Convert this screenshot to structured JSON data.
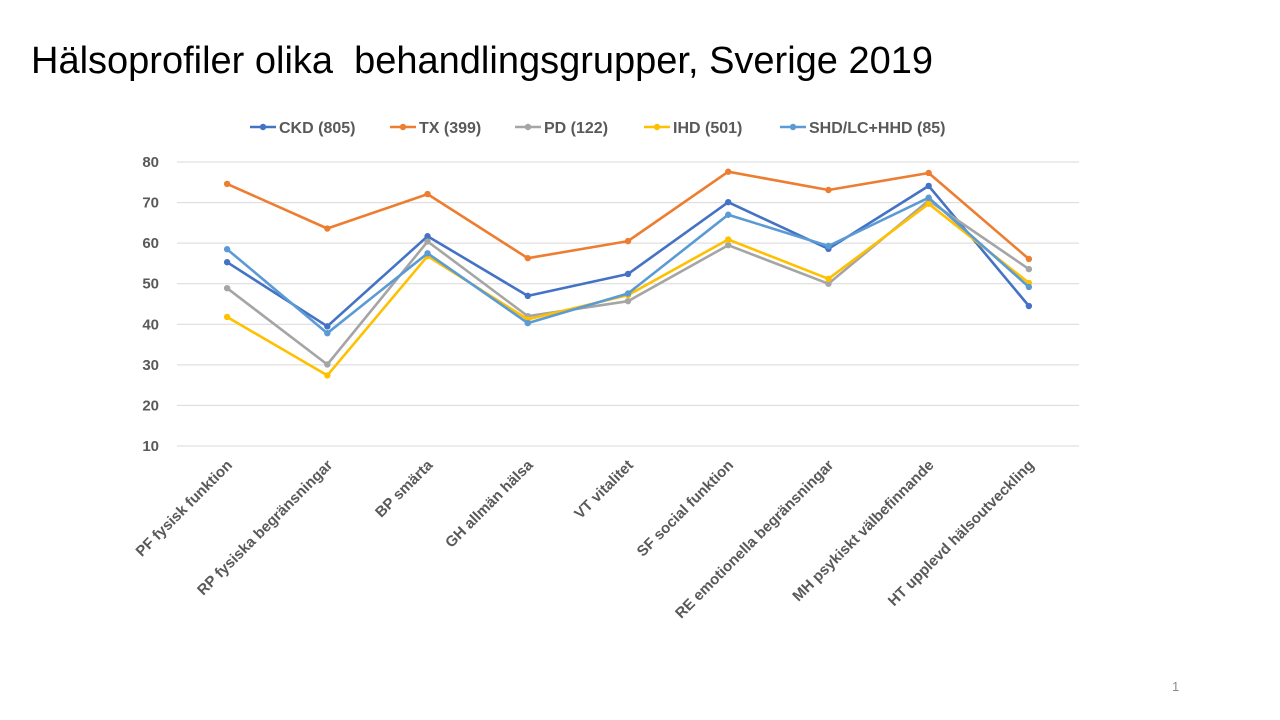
{
  "slide": {
    "title": "Hälsoprofiler olika  behandlingsgrupper, Sverige 2019",
    "page_number": "1"
  },
  "chart_data": {
    "type": "line",
    "title": "Hälsoprofiler olika  behandlingsgrupper, Sverige 2019",
    "xlabel": "",
    "ylabel": "",
    "categories": [
      "PF fysisk funktion",
      "RP fysiska begränsningar",
      "BP smärta",
      "GH allmän hälsa",
      "VT vitalitet",
      "SF social funktion",
      "RE emotionella begränsningar",
      "MH psykiskt välbefinnande",
      "HT upplevd hälsoutveckling"
    ],
    "ylim": [
      10,
      80
    ],
    "yticks": [
      "10",
      "20",
      "30",
      "40",
      "50",
      "60",
      "70",
      "80"
    ],
    "grid": true,
    "legend_position": "top",
    "series": [
      {
        "name": "CKD (805)",
        "color": "#4472C4",
        "values": [
          55.3,
          39.5,
          61.7,
          47.0,
          52.4,
          70.1,
          58.6,
          74.1,
          44.5
        ]
      },
      {
        "name": "TX (399)",
        "color": "#ED7D31",
        "values": [
          74.6,
          63.6,
          72.1,
          56.3,
          60.5,
          77.6,
          73.1,
          77.3,
          56.1
        ]
      },
      {
        "name": "PD (122)",
        "color": "#A5A5A5",
        "values": [
          48.9,
          30.1,
          60.4,
          42.0,
          45.7,
          59.5,
          50.0,
          70.5,
          53.6
        ]
      },
      {
        "name": "IHD (501)",
        "color": "#FFC000",
        "values": [
          41.8,
          27.4,
          56.8,
          41.2,
          47.2,
          60.9,
          51.2,
          69.7,
          50.2
        ]
      },
      {
        "name": "SHD/LC+HHD (85)",
        "color": "#5B9BD5",
        "values": [
          58.5,
          37.8,
          57.5,
          40.3,
          47.6,
          67.0,
          59.3,
          71.2,
          49.2
        ]
      }
    ]
  }
}
